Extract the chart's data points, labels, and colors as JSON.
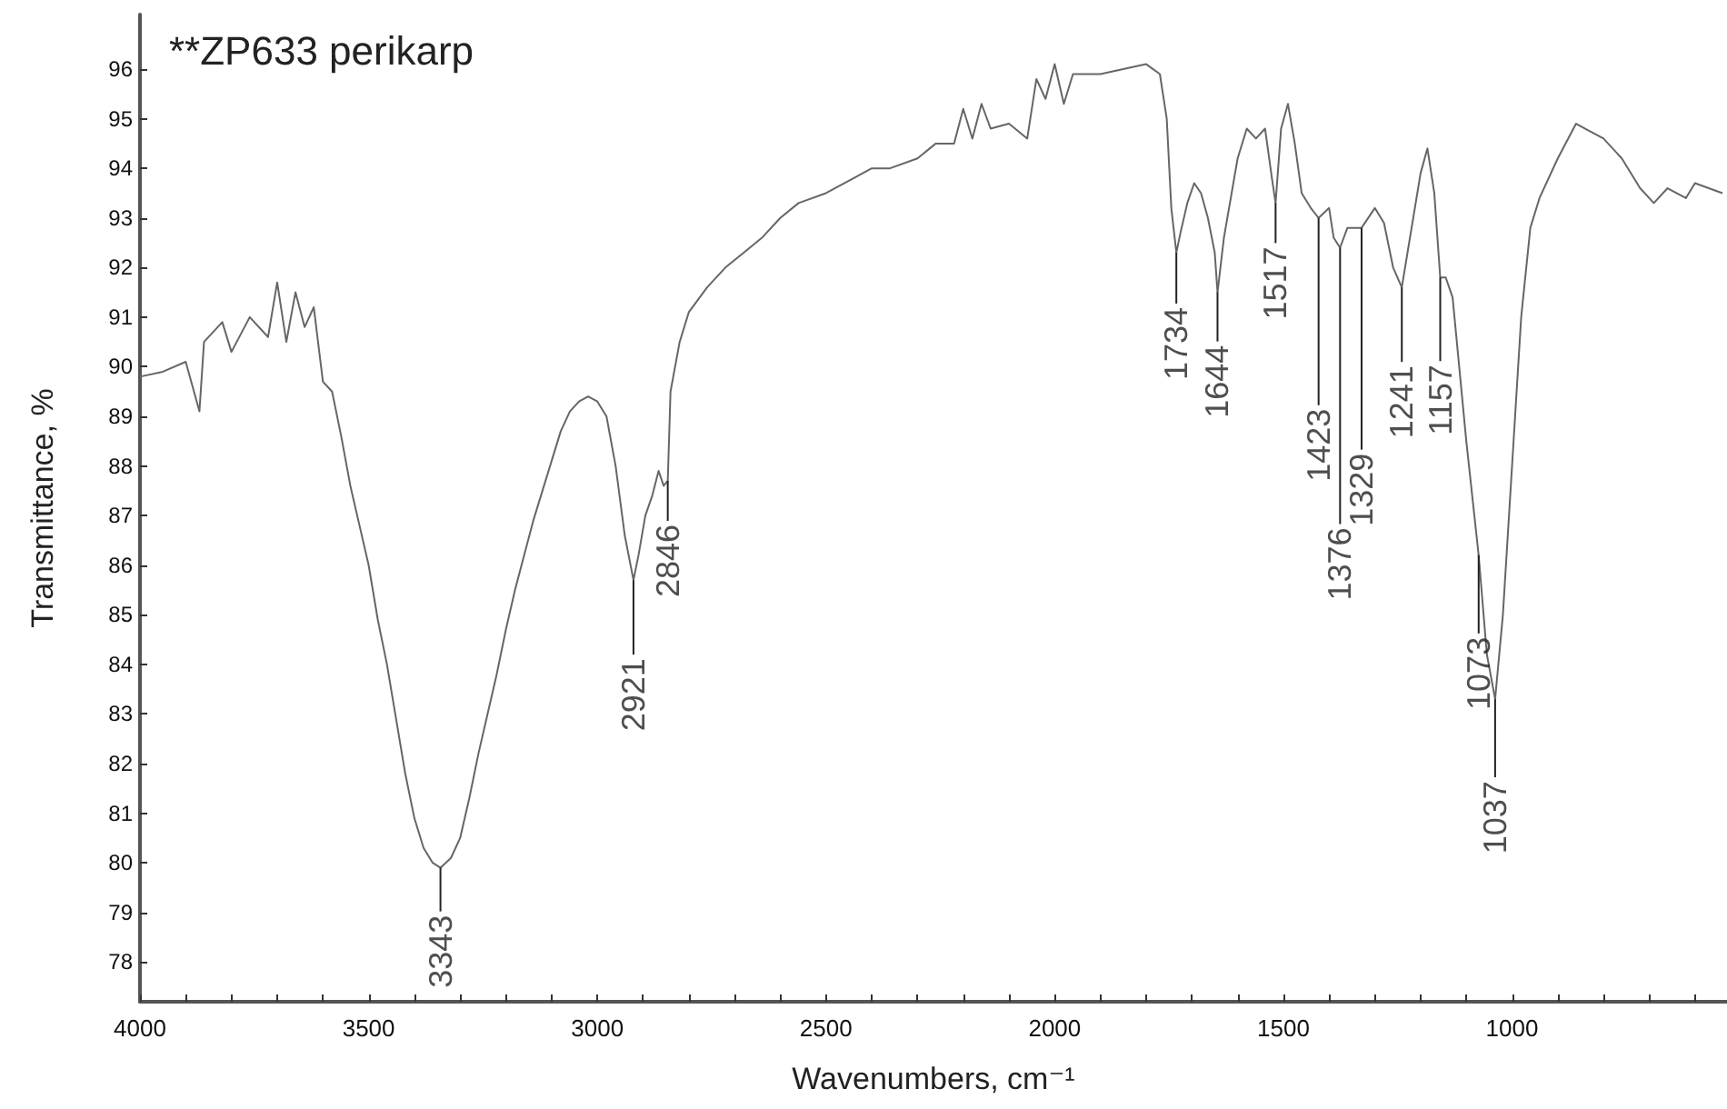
{
  "chart_data": {
    "type": "line",
    "title": "**ZP633 perikarp",
    "xlabel": "Wavenumbers, cm⁻¹",
    "ylabel": "Transmittance, %",
    "xlim": [
      4000,
      530
    ],
    "ylim": [
      77.2,
      97.1
    ],
    "xticks": [
      4000,
      {
        "value": 3900,
        "label": null
      },
      {
        "value": 3800,
        "label": null
      },
      {
        "value": 3700,
        "label": null
      },
      {
        "value": 3600,
        "label": null
      },
      3500,
      {
        "value": 3400,
        "label": null
      },
      {
        "value": 3300,
        "label": null
      },
      {
        "value": 3200,
        "label": null
      },
      {
        "value": 3100,
        "label": null
      },
      3000,
      {
        "value": 2900,
        "label": null
      },
      {
        "value": 2800,
        "label": null
      },
      {
        "value": 2700,
        "label": null
      },
      {
        "value": 2600,
        "label": null
      },
      2500,
      {
        "value": 2400,
        "label": null
      },
      {
        "value": 2300,
        "label": null
      },
      {
        "value": 2200,
        "label": null
      },
      {
        "value": 2100,
        "label": null
      },
      2000,
      {
        "value": 1900,
        "label": null
      },
      {
        "value": 1800,
        "label": null
      },
      {
        "value": 1700,
        "label": null
      },
      {
        "value": 1600,
        "label": null
      },
      1500,
      {
        "value": 1400,
        "label": null
      },
      {
        "value": 1300,
        "label": null
      },
      {
        "value": 1200,
        "label": null
      },
      {
        "value": 1100,
        "label": null
      },
      1000,
      {
        "value": 900,
        "label": null
      },
      {
        "value": 800,
        "label": null
      },
      {
        "value": 700,
        "label": null
      },
      {
        "value": 600,
        "label": null
      }
    ],
    "yticks": [
      78,
      79,
      80,
      81,
      82,
      83,
      84,
      85,
      86,
      87,
      88,
      89,
      90,
      91,
      92,
      93,
      94,
      95,
      96
    ],
    "grid": false,
    "marker": "none",
    "line_style": "solid",
    "series": [
      {
        "color": "#666666",
        "x": [
          4000,
          3950,
          3900,
          3870,
          3860,
          3820,
          3800,
          3760,
          3720,
          3700,
          3680,
          3660,
          3640,
          3620,
          3600,
          3580,
          3560,
          3540,
          3520,
          3500,
          3480,
          3460,
          3440,
          3420,
          3400,
          3380,
          3360,
          3343,
          3320,
          3300,
          3280,
          3260,
          3240,
          3220,
          3200,
          3180,
          3160,
          3140,
          3120,
          3100,
          3080,
          3060,
          3040,
          3020,
          3000,
          2980,
          2960,
          2940,
          2921,
          2910,
          2895,
          2880,
          2866,
          2855,
          2846,
          2840,
          2820,
          2800,
          2760,
          2720,
          2680,
          2640,
          2600,
          2560,
          2500,
          2440,
          2400,
          2360,
          2300,
          2260,
          2220,
          2200,
          2180,
          2160,
          2140,
          2100,
          2060,
          2040,
          2020,
          2000,
          1980,
          1960,
          1900,
          1850,
          1800,
          1770,
          1755,
          1745,
          1734,
          1725,
          1710,
          1695,
          1680,
          1665,
          1650,
          1644,
          1630,
          1600,
          1580,
          1560,
          1540,
          1525,
          1517,
          1505,
          1490,
          1475,
          1460,
          1440,
          1423,
          1400,
          1390,
          1376,
          1360,
          1340,
          1329,
          1300,
          1280,
          1260,
          1241,
          1225,
          1200,
          1185,
          1170,
          1157,
          1145,
          1130,
          1100,
          1073,
          1055,
          1037,
          1020,
          1000,
          980,
          960,
          940,
          900,
          860,
          840,
          800,
          760,
          720,
          690,
          660,
          620,
          600,
          540
        ],
        "values": [
          89.8,
          89.9,
          90.1,
          89.1,
          90.5,
          90.9,
          90.3,
          91.0,
          90.6,
          91.7,
          90.5,
          91.5,
          90.8,
          91.2,
          89.7,
          89.5,
          88.6,
          87.6,
          86.8,
          86.0,
          84.9,
          84.0,
          82.9,
          81.8,
          80.9,
          80.3,
          80.0,
          79.9,
          80.1,
          80.5,
          81.3,
          82.2,
          83.0,
          83.8,
          84.7,
          85.5,
          86.2,
          86.9,
          87.5,
          88.1,
          88.7,
          89.1,
          89.3,
          89.4,
          89.3,
          89.0,
          88.0,
          86.6,
          85.7,
          86.2,
          87.0,
          87.4,
          87.9,
          87.6,
          87.7,
          89.5,
          90.5,
          91.1,
          91.6,
          92.0,
          92.3,
          92.6,
          93.0,
          93.3,
          93.5,
          93.8,
          94.0,
          94.0,
          94.2,
          94.5,
          94.5,
          95.2,
          94.6,
          95.3,
          94.8,
          94.9,
          94.6,
          95.8,
          95.4,
          96.1,
          95.3,
          95.9,
          95.9,
          96.0,
          96.1,
          95.9,
          95.0,
          93.2,
          92.3,
          92.7,
          93.3,
          93.7,
          93.5,
          93.0,
          92.3,
          91.5,
          92.6,
          94.2,
          94.8,
          94.6,
          94.8,
          93.8,
          93.3,
          94.8,
          95.3,
          94.5,
          93.5,
          93.2,
          93.0,
          93.2,
          92.6,
          92.4,
          92.8,
          92.8,
          92.8,
          93.2,
          92.9,
          92.0,
          91.6,
          92.5,
          93.9,
          94.4,
          93.5,
          91.8,
          91.8,
          91.4,
          88.5,
          86.2,
          84.2,
          83.3,
          85.0,
          88.0,
          91.0,
          92.8,
          93.4,
          94.2,
          94.9,
          94.8,
          94.6,
          94.2,
          93.6,
          93.3,
          93.6,
          93.4,
          93.7,
          93.5
        ]
      }
    ],
    "annotations": [
      {
        "text": "3343",
        "x": 3343,
        "y": 79.9
      },
      {
        "text": "2921",
        "x": 2921,
        "y": 85.7
      },
      {
        "text": "2846",
        "x": 2846,
        "y": 87.7
      },
      {
        "text": "1734",
        "x": 1734,
        "y": 92.3
      },
      {
        "text": "1644",
        "x": 1644,
        "y": 91.5
      },
      {
        "text": "1517",
        "x": 1517,
        "y": 93.3
      },
      {
        "text": "1423",
        "x": 1423,
        "y": 93.0
      },
      {
        "text": "1376",
        "x": 1376,
        "y": 92.4
      },
      {
        "text": "1329",
        "x": 1329,
        "y": 92.8
      },
      {
        "text": "1241",
        "x": 1241,
        "y": 91.6
      },
      {
        "text": "1157",
        "x": 1157,
        "y": 91.8
      },
      {
        "text": "1073",
        "x": 1073,
        "y": 86.2
      },
      {
        "text": "1037",
        "x": 1037,
        "y": 83.3
      }
    ]
  }
}
